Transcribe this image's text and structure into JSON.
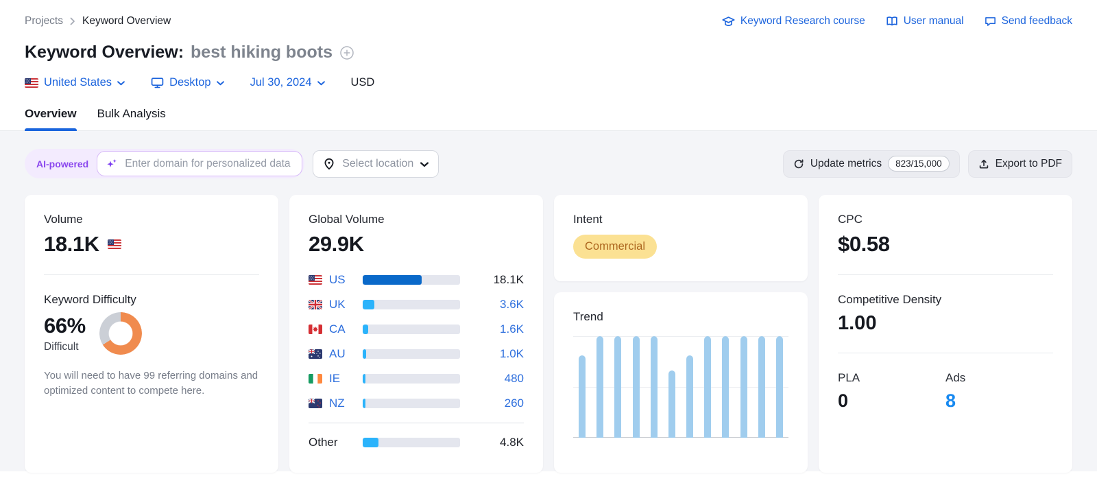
{
  "breadcrumb": {
    "items": [
      {
        "label": "Projects"
      },
      {
        "label": "Keyword Overview"
      }
    ]
  },
  "header_links": [
    {
      "label": "Keyword Research course",
      "icon": "graduation-cap-icon"
    },
    {
      "label": "User manual",
      "icon": "book-icon"
    },
    {
      "label": "Send feedback",
      "icon": "feedback-bubble-icon"
    }
  ],
  "title": {
    "prefix": "Keyword Overview:",
    "keyword": "best hiking boots"
  },
  "filters": {
    "country": "United States",
    "device": "Desktop",
    "date": "Jul 30, 2024",
    "currency": "USD"
  },
  "tabs": [
    {
      "label": "Overview",
      "active": true
    },
    {
      "label": "Bulk Analysis",
      "active": false
    }
  ],
  "toolbar": {
    "ai_badge": "AI-powered",
    "domain_placeholder": "Enter domain for personalized data",
    "location_label": "Select location",
    "update_metrics_label": "Update metrics",
    "update_counter": "823/15,000",
    "export_label": "Export to PDF"
  },
  "cards": {
    "volume": {
      "title": "Volume",
      "value": "18.1K",
      "flag": "US"
    },
    "keyword_difficulty": {
      "title": "Keyword Difficulty",
      "value": "66%",
      "percent": 66,
      "level": "Difficult",
      "note": "You will need to have 99 referring domains and optimized content to compete here."
    },
    "global_volume": {
      "title": "Global Volume",
      "value": "29.9K",
      "rows": [
        {
          "code": "US",
          "label": "US",
          "value": "18.1K",
          "pct": 60.5,
          "emphasis": true
        },
        {
          "code": "UK",
          "label": "UK",
          "value": "3.6K",
          "pct": 12.0,
          "emphasis": false
        },
        {
          "code": "CA",
          "label": "CA",
          "value": "1.6K",
          "pct": 5.4,
          "emphasis": false
        },
        {
          "code": "AU",
          "label": "AU",
          "value": "1.0K",
          "pct": 3.3,
          "emphasis": false
        },
        {
          "code": "IE",
          "label": "IE",
          "value": "480",
          "pct": 1.6,
          "emphasis": false
        },
        {
          "code": "NZ",
          "label": "NZ",
          "value": "260",
          "pct": 0.9,
          "emphasis": false
        }
      ],
      "other_row": {
        "label": "Other",
        "value": "4.8K",
        "pct": 16.1
      }
    },
    "intent": {
      "title": "Intent",
      "badge": "Commercial"
    },
    "trend": {
      "title": "Trend"
    },
    "cpc": {
      "title": "CPC",
      "value": "$0.58"
    },
    "competitive_density": {
      "title": "Competitive Density",
      "value": "1.00"
    },
    "pla": {
      "label": "PLA",
      "value": "0"
    },
    "ads": {
      "label": "Ads",
      "value": "8"
    }
  },
  "colors": {
    "link_blue": "#1c64dd",
    "bar_dark_blue": "#0a69c9",
    "bar_light_blue": "#2bb3fb",
    "bar_track": "#e4e6ee",
    "trend_bar": "#a0cdee",
    "kd_orange": "#f08b4e",
    "kd_track": "#cbcfd6",
    "intent_bg": "#fbe193",
    "intent_text": "#ad671f",
    "ads_blue": "#1789f0",
    "ai_purple": "#8a46ee",
    "tab_underline": "#1a65dd"
  },
  "chart_data": [
    {
      "type": "bar",
      "title": "Global Volume by country",
      "orientation": "horizontal",
      "categories": [
        "US",
        "UK",
        "CA",
        "AU",
        "IE",
        "NZ",
        "Other"
      ],
      "values": [
        18100,
        3600,
        1600,
        1000,
        480,
        260,
        4800
      ],
      "value_labels": [
        "18.1K",
        "3.6K",
        "1.6K",
        "1.0K",
        "480",
        "260",
        "4.8K"
      ],
      "total": 29900,
      "total_label": "29.9K",
      "legend": "none",
      "grid": false
    },
    {
      "type": "bar",
      "title": "Trend",
      "x": [
        1,
        2,
        3,
        4,
        5,
        6,
        7,
        8,
        9,
        10,
        11,
        12
      ],
      "values": [
        0.81,
        1,
        1,
        1,
        1,
        0.66,
        0.81,
        1,
        1,
        1,
        1,
        1
      ],
      "ylim": [
        0,
        1
      ],
      "xlabel": "",
      "ylabel": "",
      "note": "12 monthly bars, values normalized to max; no axis tick labels shown",
      "gridlines": 3
    }
  ]
}
